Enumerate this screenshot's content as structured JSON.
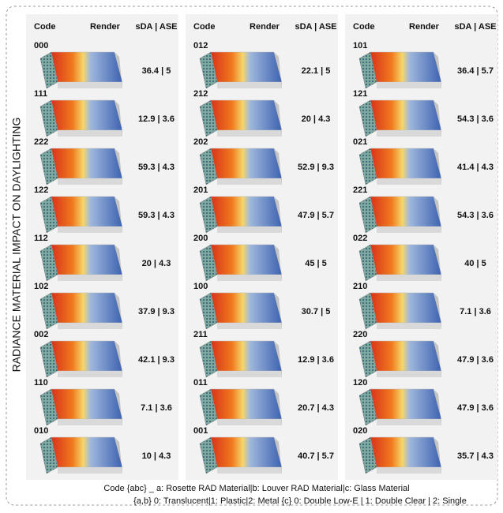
{
  "title": "RADIANCE MATERIAL IMPACT ON DAYLIGHTING",
  "columns": [
    "Code",
    "Render",
    "sDA | ASE"
  ],
  "panels": [
    {
      "rows": [
        {
          "code": "000",
          "sda_ase": "36.4 | 5"
        },
        {
          "code": "111",
          "sda_ase": "12.9 | 3.6"
        },
        {
          "code": "222",
          "sda_ase": "59.3 | 4.3"
        },
        {
          "code": "122",
          "sda_ase": "59.3 | 4.3"
        },
        {
          "code": "112",
          "sda_ase": "20 | 4.3"
        },
        {
          "code": "102",
          "sda_ase": "37.9 | 9.3"
        },
        {
          "code": "002",
          "sda_ase": "42.1 | 9.3"
        },
        {
          "code": "110",
          "sda_ase": "7.1 | 3.6"
        },
        {
          "code": "010",
          "sda_ase": "10 | 4.3"
        }
      ]
    },
    {
      "rows": [
        {
          "code": "012",
          "sda_ase": "22.1 | 5"
        },
        {
          "code": "212",
          "sda_ase": "20 | 4.3"
        },
        {
          "code": "202",
          "sda_ase": "52.9 | 9.3"
        },
        {
          "code": "201",
          "sda_ase": "47.9 | 5.7"
        },
        {
          "code": "200",
          "sda_ase": "45 | 5"
        },
        {
          "code": "100",
          "sda_ase": "30.7 | 5"
        },
        {
          "code": "211",
          "sda_ase": "12.9 | 3.6"
        },
        {
          "code": "011",
          "sda_ase": "20.7 | 4.3"
        },
        {
          "code": "001",
          "sda_ase": "40.7 | 5.7"
        }
      ]
    },
    {
      "rows": [
        {
          "code": "101",
          "sda_ase": "36.4 | 5.7"
        },
        {
          "code": "121",
          "sda_ase": "54.3 | 3.6"
        },
        {
          "code": "021",
          "sda_ase": "41.4 | 4.3"
        },
        {
          "code": "221",
          "sda_ase": "54.3 | 3.6"
        },
        {
          "code": "022",
          "sda_ase": "40 | 5"
        },
        {
          "code": "210",
          "sda_ase": "7.1 | 3.6"
        },
        {
          "code": "220",
          "sda_ase": "47.9 | 3.6"
        },
        {
          "code": "120",
          "sda_ase": "47.9 | 3.6"
        },
        {
          "code": "020",
          "sda_ase": "35.7 | 4.3"
        }
      ]
    }
  ],
  "footer": [
    "Code {abc} _ a: Rosette RAD Material|b: Louver RAD Material|c: Glass Material",
    "{a,b} 0: Translucent|1: Plastic|2: Metal  {c} 0: Double Low-E | 1: Double Clear | 2: Single"
  ]
}
